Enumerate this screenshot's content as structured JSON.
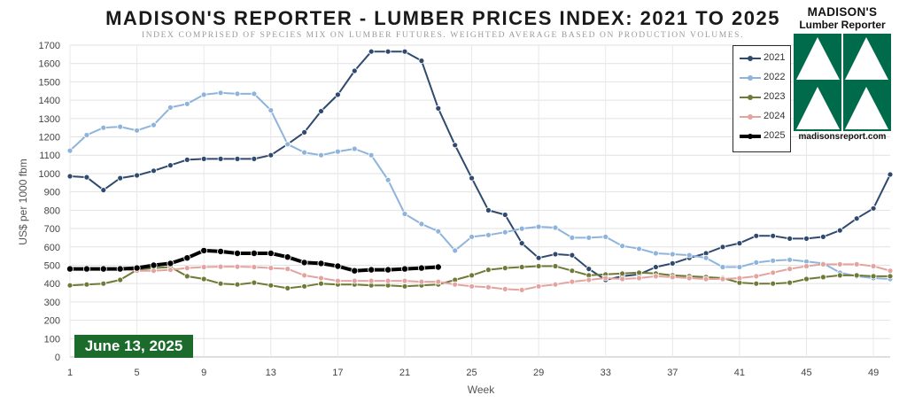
{
  "header": {
    "title": "MADISON'S REPORTER - LUMBER PRICES INDEX: 2021 TO 2025",
    "subtitle": "INDEX COMPRISED OF SPECIES MIX ON LUMBER FUTURES. WEIGHTED AVERAGE BASED ON PRODUCTION VOLUMES."
  },
  "badge": {
    "date": "June 13, 2025",
    "color": "#1d6b2c"
  },
  "logo": {
    "line1": "MADISON'S",
    "line2": "Lumber Reporter",
    "footer": "madisonsreport.com",
    "color": "#006b4a"
  },
  "chart_data": {
    "type": "line",
    "title": "MADISON'S REPORTER - LUMBER PRICES INDEX: 2021 TO 2025",
    "xlabel": "Week",
    "ylabel": "US$ per 1000 fbm",
    "xlim": [
      1,
      50
    ],
    "ylim": [
      0,
      1700
    ],
    "x_ticks": [
      1,
      5,
      9,
      13,
      17,
      21,
      25,
      29,
      33,
      37,
      41,
      45,
      49
    ],
    "y_ticks": [
      0,
      100,
      200,
      300,
      400,
      500,
      600,
      700,
      800,
      900,
      1000,
      1100,
      1200,
      1300,
      1400,
      1500,
      1600,
      1700
    ],
    "grid": true,
    "legend_position": "top-right",
    "series": [
      {
        "name": "2021",
        "color": "#2f4a6e",
        "bold": false,
        "x": [
          1,
          2,
          3,
          4,
          5,
          6,
          7,
          8,
          9,
          10,
          11,
          12,
          13,
          14,
          15,
          16,
          17,
          18,
          19,
          20,
          21,
          22,
          23,
          24,
          25,
          26,
          27,
          28,
          29,
          30,
          31,
          32,
          33,
          34,
          35,
          36,
          37,
          38,
          39,
          40,
          41,
          42,
          43,
          44,
          45,
          46,
          47,
          48,
          49,
          50
        ],
        "values": [
          985,
          980,
          910,
          975,
          990,
          1015,
          1045,
          1075,
          1080,
          1080,
          1080,
          1080,
          1100,
          1160,
          1225,
          1340,
          1430,
          1560,
          1665,
          1665,
          1665,
          1615,
          1355,
          1155,
          975,
          800,
          775,
          620,
          540,
          560,
          555,
          480,
          420,
          440,
          450,
          490,
          510,
          540,
          565,
          600,
          620,
          660,
          660,
          645,
          645,
          655,
          690,
          755,
          810,
          995
        ]
      },
      {
        "name": "2022",
        "color": "#8fb4dc",
        "bold": false,
        "x": [
          1,
          2,
          3,
          4,
          5,
          6,
          7,
          8,
          9,
          10,
          11,
          12,
          13,
          14,
          15,
          16,
          17,
          18,
          19,
          20,
          21,
          22,
          23,
          24,
          25,
          26,
          27,
          28,
          29,
          30,
          31,
          32,
          33,
          34,
          35,
          36,
          37,
          38,
          39,
          40,
          41,
          42,
          43,
          44,
          45,
          46,
          47,
          48,
          49,
          50
        ],
        "values": [
          1125,
          1210,
          1250,
          1255,
          1235,
          1265,
          1360,
          1380,
          1430,
          1440,
          1435,
          1435,
          1345,
          1160,
          1115,
          1100,
          1120,
          1135,
          1100,
          965,
          780,
          725,
          685,
          580,
          655,
          665,
          680,
          700,
          710,
          705,
          650,
          650,
          655,
          605,
          590,
          565,
          560,
          555,
          540,
          490,
          490,
          515,
          525,
          530,
          520,
          510,
          460,
          440,
          430,
          425
        ]
      },
      {
        "name": "2023",
        "color": "#6f7a36",
        "bold": false,
        "x": [
          1,
          2,
          3,
          4,
          5,
          6,
          7,
          8,
          9,
          10,
          11,
          12,
          13,
          14,
          15,
          16,
          17,
          18,
          19,
          20,
          21,
          22,
          23,
          24,
          25,
          26,
          27,
          28,
          29,
          30,
          31,
          32,
          33,
          34,
          35,
          36,
          37,
          38,
          39,
          40,
          41,
          42,
          43,
          44,
          45,
          46,
          47,
          48,
          49,
          50
        ],
        "values": [
          390,
          395,
          400,
          420,
          475,
          485,
          490,
          440,
          425,
          400,
          395,
          405,
          390,
          375,
          385,
          400,
          395,
          395,
          390,
          390,
          385,
          390,
          395,
          420,
          445,
          475,
          485,
          490,
          495,
          495,
          470,
          445,
          450,
          455,
          460,
          455,
          445,
          440,
          435,
          430,
          405,
          400,
          400,
          405,
          425,
          435,
          445,
          445,
          440,
          440
        ]
      },
      {
        "name": "2024",
        "color": "#e3a4a0",
        "bold": false,
        "x": [
          1,
          2,
          3,
          4,
          5,
          6,
          7,
          8,
          9,
          10,
          11,
          12,
          13,
          14,
          15,
          16,
          17,
          18,
          19,
          20,
          21,
          22,
          23,
          24,
          25,
          26,
          27,
          28,
          29,
          30,
          31,
          32,
          33,
          34,
          35,
          36,
          37,
          38,
          39,
          40,
          41,
          42,
          43,
          44,
          45,
          46,
          47,
          48,
          49,
          50
        ],
        "values": [
          480,
          475,
          478,
          480,
          470,
          470,
          475,
          485,
          490,
          492,
          492,
          490,
          485,
          480,
          445,
          430,
          415,
          415,
          415,
          415,
          415,
          410,
          410,
          395,
          385,
          380,
          370,
          365,
          385,
          395,
          410,
          420,
          430,
          425,
          430,
          440,
          435,
          430,
          425,
          425,
          430,
          440,
          460,
          480,
          495,
          505,
          505,
          505,
          495,
          470
        ]
      },
      {
        "name": "2025",
        "color": "#000000",
        "bold": true,
        "x": [
          1,
          2,
          3,
          4,
          5,
          6,
          7,
          8,
          9,
          10,
          11,
          12,
          13,
          14,
          15,
          16,
          17,
          18,
          19,
          20,
          21,
          22,
          23
        ],
        "values": [
          480,
          480,
          480,
          480,
          485,
          500,
          510,
          540,
          580,
          575,
          565,
          565,
          565,
          545,
          515,
          510,
          495,
          470,
          475,
          475,
          480,
          485,
          490
        ]
      }
    ]
  }
}
